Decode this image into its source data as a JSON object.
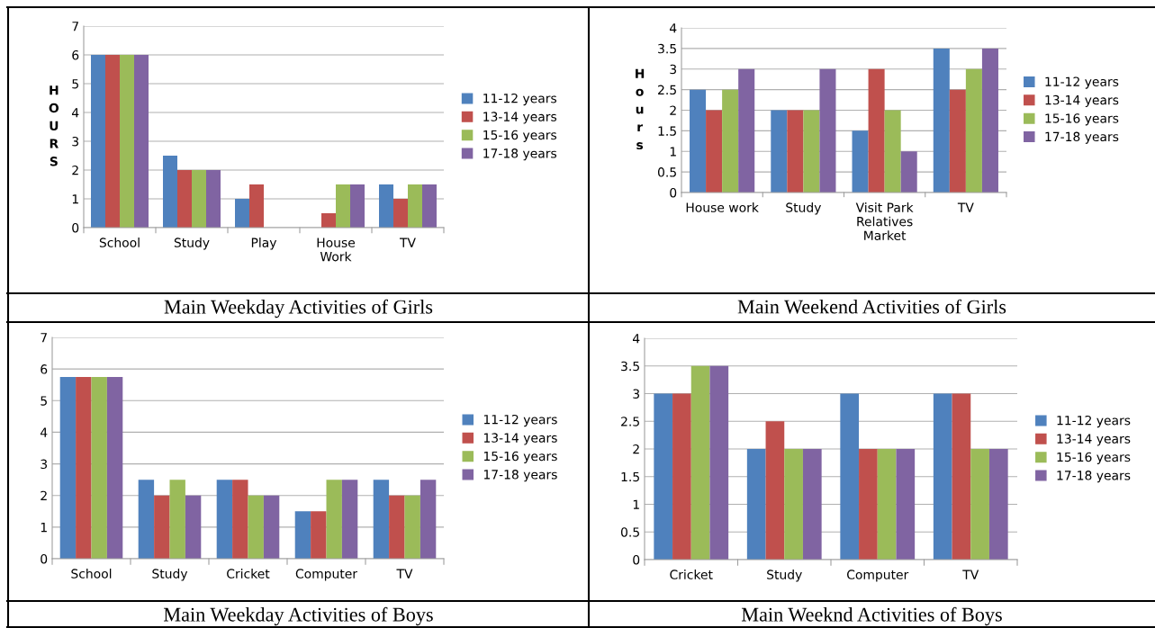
{
  "chart_data": [
    {
      "type": "bar",
      "title": "Main Weekday Activities of Girls",
      "ylabel": "HOURS",
      "categories": [
        "School",
        "Study",
        "Play",
        "House\nWork",
        "TV"
      ],
      "series": [
        {
          "name": "11-12 years",
          "color": "#4f81bd",
          "values": [
            6,
            2.5,
            1,
            0,
            1.5
          ]
        },
        {
          "name": "13-14 years",
          "color": "#c0504d",
          "values": [
            6,
            2,
            1.5,
            0.5,
            1
          ]
        },
        {
          "name": "15-16 years",
          "color": "#9bbb59",
          "values": [
            6,
            2,
            0,
            1.5,
            1.5
          ]
        },
        {
          "name": "17-18 years",
          "color": "#8064a2",
          "values": [
            6,
            2,
            0,
            1.5,
            1.5
          ]
        }
      ],
      "ylim": [
        0,
        7
      ],
      "yticks": [
        0,
        1,
        2,
        3,
        4,
        5,
        6,
        7
      ],
      "grid": "y",
      "legend": "right"
    },
    {
      "type": "bar",
      "title": "Main Weekend Activities of Girls",
      "ylabel": "Hours",
      "categories": [
        "House work",
        "Study",
        "Visit Park\nRelatives\nMarket",
        "TV"
      ],
      "series": [
        {
          "name": "11-12 years",
          "color": "#4f81bd",
          "values": [
            2.5,
            2,
            1.5,
            3.5
          ]
        },
        {
          "name": "13-14 years",
          "color": "#c0504d",
          "values": [
            2,
            2,
            3,
            2.5
          ]
        },
        {
          "name": "15-16 years",
          "color": "#9bbb59",
          "values": [
            2.5,
            2,
            2,
            3
          ]
        },
        {
          "name": "17-18 years",
          "color": "#8064a2",
          "values": [
            3,
            3,
            1,
            3.5
          ]
        }
      ],
      "ylim": [
        0,
        4
      ],
      "yticks": [
        0,
        0.5,
        1,
        1.5,
        2,
        2.5,
        3,
        3.5,
        4
      ],
      "grid": "y",
      "legend": "right"
    },
    {
      "type": "bar",
      "title": "Main Weekday Activities of Boys",
      "categories": [
        "School",
        "Study",
        "Cricket",
        "Computer",
        "TV"
      ],
      "series": [
        {
          "name": "11-12 years",
          "color": "#4f81bd",
          "values": [
            5.75,
            2.5,
            2.5,
            1.5,
            2.5
          ]
        },
        {
          "name": "13-14 years",
          "color": "#c0504d",
          "values": [
            5.75,
            2,
            2.5,
            1.5,
            2
          ]
        },
        {
          "name": "15-16 years",
          "color": "#9bbb59",
          "values": [
            5.75,
            2.5,
            2,
            2.5,
            2
          ]
        },
        {
          "name": "17-18 years",
          "color": "#8064a2",
          "values": [
            5.75,
            2,
            2,
            2.5,
            2.5
          ]
        }
      ],
      "ylim": [
        0,
        7
      ],
      "yticks": [
        0,
        1,
        2,
        3,
        4,
        5,
        6,
        7
      ],
      "grid": "y",
      "legend": "right"
    },
    {
      "type": "bar",
      "title": "Main Weeknd Activities of Boys",
      "categories": [
        "Cricket",
        "Study",
        "Computer",
        "TV"
      ],
      "series": [
        {
          "name": "11-12 years",
          "color": "#4f81bd",
          "values": [
            3,
            2,
            3,
            3
          ]
        },
        {
          "name": "13-14 years",
          "color": "#c0504d",
          "values": [
            3,
            2.5,
            2,
            3
          ]
        },
        {
          "name": "15-16 years",
          "color": "#9bbb59",
          "values": [
            3.5,
            2,
            2,
            2
          ]
        },
        {
          "name": "17-18 years",
          "color": "#8064a2",
          "values": [
            3.5,
            2,
            2,
            2
          ]
        }
      ],
      "ylim": [
        0,
        4
      ],
      "yticks": [
        0,
        0.5,
        1,
        1.5,
        2,
        2.5,
        3,
        3.5,
        4
      ],
      "grid": "y",
      "legend": "right"
    }
  ]
}
